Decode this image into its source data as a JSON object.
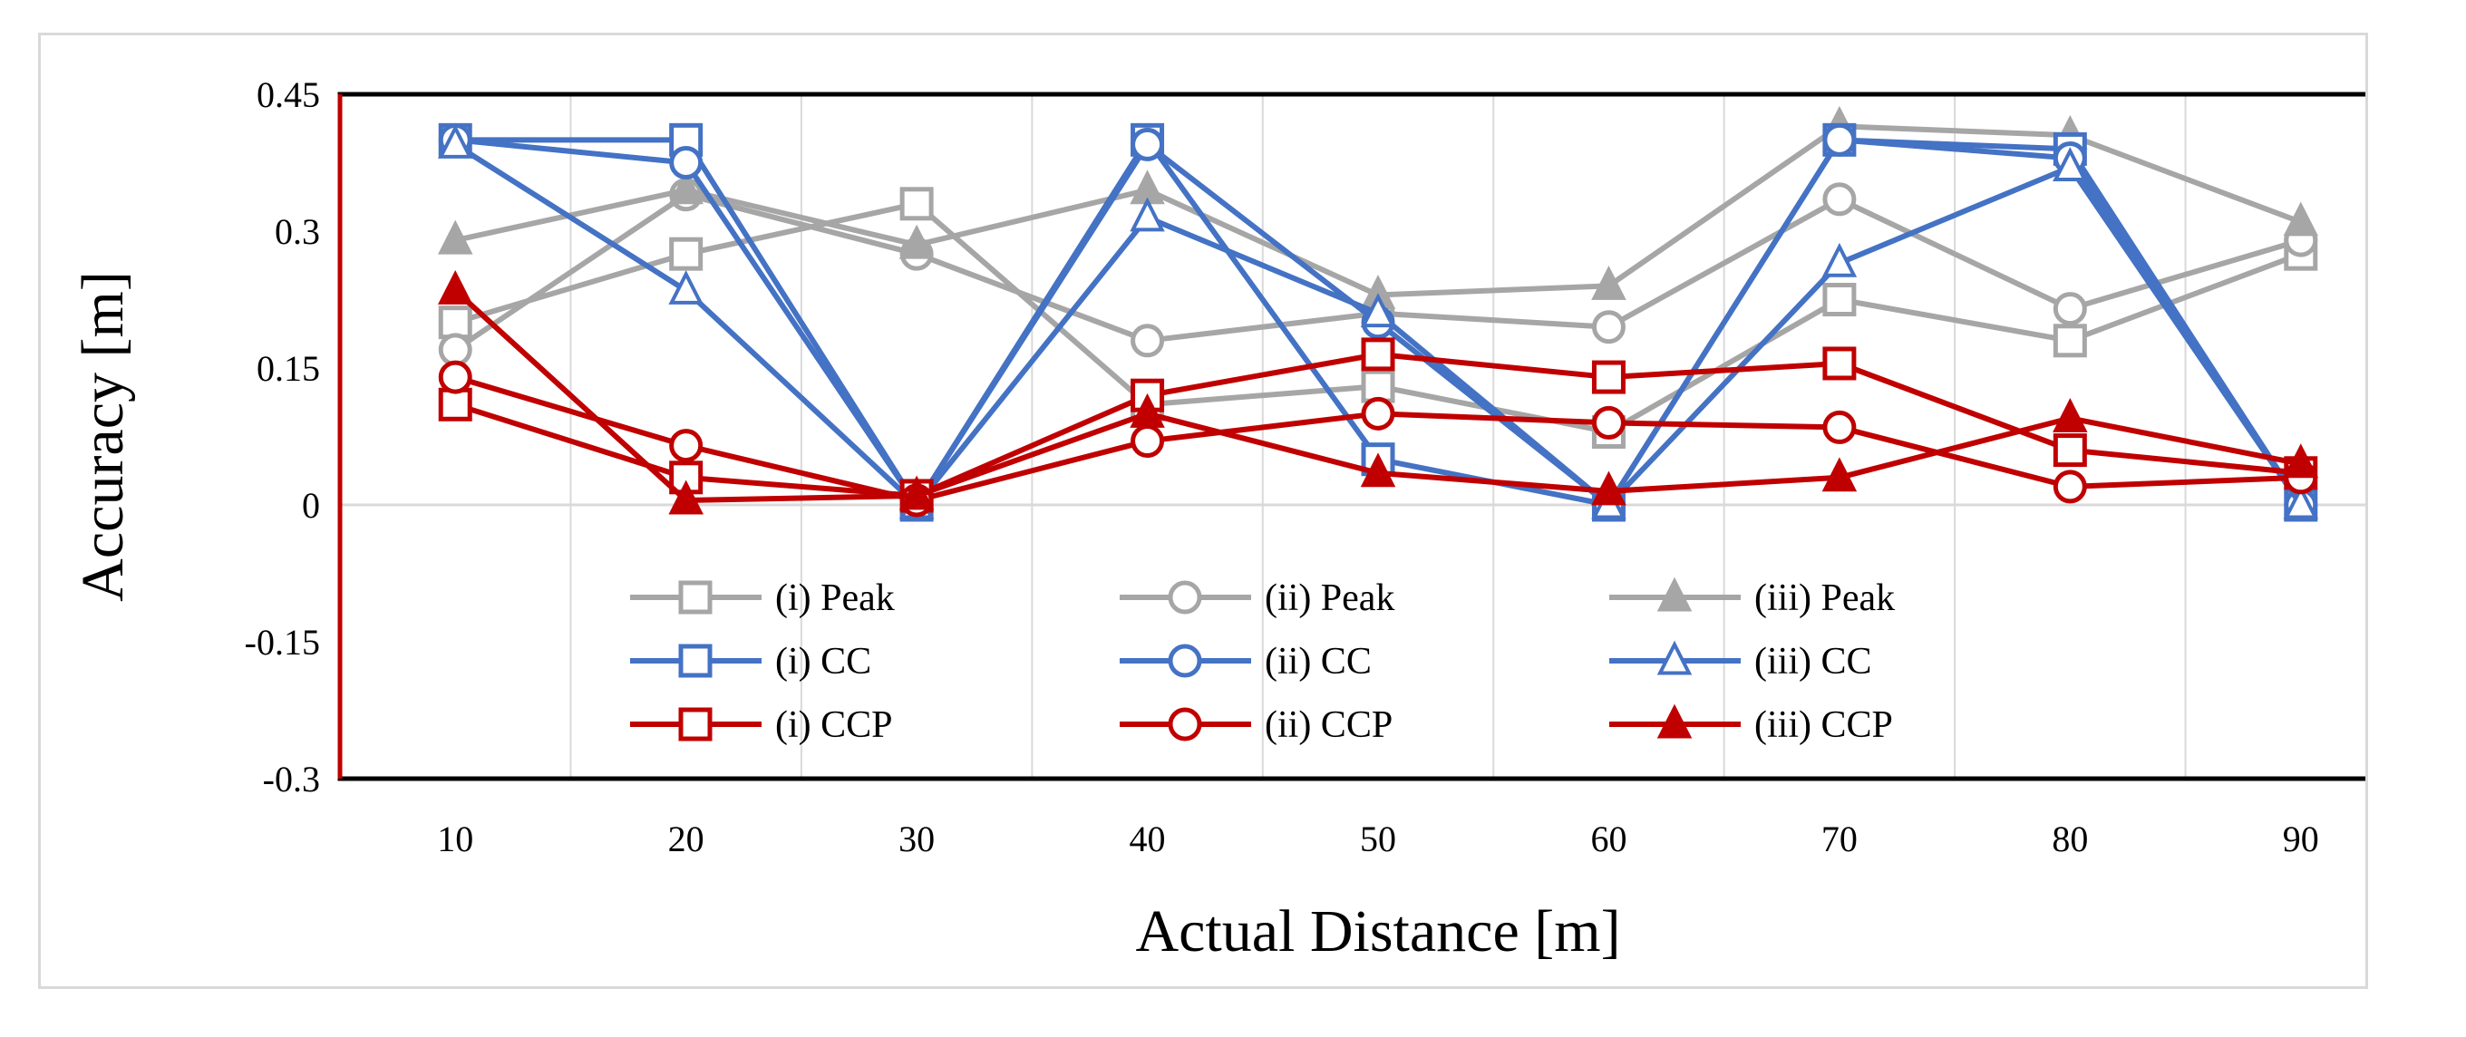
{
  "chart_data": {
    "type": "line",
    "xlabel": "Actual Distance [m]",
    "ylabel": "Accuracy [m]",
    "x": [
      10,
      20,
      30,
      40,
      50,
      60,
      70,
      80,
      90
    ],
    "ylim": [
      -0.3,
      0.45
    ],
    "yticks": [
      0.45,
      0.3,
      0.15,
      0,
      -0.15,
      -0.3
    ],
    "ytick_labels": [
      "0.45",
      "0.3",
      "0.15",
      "0",
      "-0.15",
      "-0.3"
    ],
    "xtick_labels": [
      "10",
      "20",
      "30",
      "40",
      "50",
      "60",
      "70",
      "80",
      "90"
    ],
    "grid": "vertical",
    "legend_position": "bottom-center inside plot",
    "series": [
      {
        "name": "(i) Peak",
        "color": "#a6a6a6",
        "marker": "square",
        "hollow": true,
        "values": [
          0.2,
          0.275,
          0.33,
          0.11,
          0.13,
          0.08,
          0.225,
          0.18,
          0.275
        ]
      },
      {
        "name": "(ii) Peak",
        "color": "#a6a6a6",
        "marker": "circle",
        "hollow": true,
        "values": [
          0.17,
          0.34,
          0.275,
          0.18,
          0.21,
          0.195,
          0.335,
          0.215,
          0.29
        ]
      },
      {
        "name": "(iii) Peak",
        "color": "#a6a6a6",
        "marker": "triangle",
        "hollow": false,
        "values": [
          0.29,
          0.345,
          0.285,
          0.345,
          0.23,
          0.24,
          0.415,
          0.405,
          0.31
        ]
      },
      {
        "name": "(i) CC",
        "color": "#4472c4",
        "marker": "square",
        "hollow": true,
        "values": [
          0.4,
          0.4,
          0.0,
          0.4,
          0.05,
          0.0,
          0.4,
          0.39,
          0.0
        ]
      },
      {
        "name": "(ii) CC",
        "color": "#4472c4",
        "marker": "circle",
        "hollow": true,
        "values": [
          0.4,
          0.375,
          0.0,
          0.395,
          0.2,
          0.0,
          0.4,
          0.38,
          0.0
        ]
      },
      {
        "name": "(iii) CC",
        "color": "#4472c4",
        "marker": "triangle",
        "hollow": true,
        "values": [
          0.395,
          0.235,
          0.0,
          0.315,
          0.21,
          0.0,
          0.265,
          0.37,
          0.0
        ]
      },
      {
        "name": "(i) CCP",
        "color": "#c00000",
        "marker": "square",
        "hollow": true,
        "values": [
          0.11,
          0.03,
          0.01,
          0.12,
          0.165,
          0.14,
          0.155,
          0.06,
          0.035
        ]
      },
      {
        "name": "(ii) CCP",
        "color": "#c00000",
        "marker": "circle",
        "hollow": true,
        "values": [
          0.14,
          0.065,
          0.005,
          0.07,
          0.1,
          0.09,
          0.085,
          0.02,
          0.03
        ]
      },
      {
        "name": "(iii) CCP",
        "color": "#c00000",
        "marker": "triangle",
        "hollow": false,
        "values": [
          0.235,
          0.005,
          0.01,
          0.1,
          0.035,
          0.015,
          0.03,
          0.095,
          0.045
        ]
      }
    ]
  }
}
